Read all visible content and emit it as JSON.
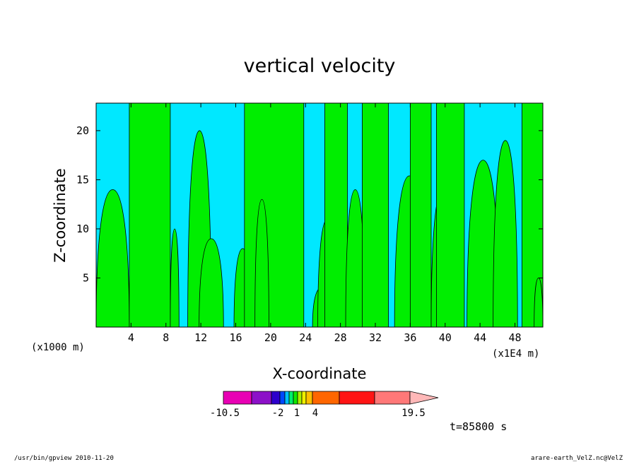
{
  "chart_data": {
    "type": "contour",
    "title": "vertical velocity",
    "xlabel": "X-coordinate",
    "ylabel": "Z-coordinate",
    "x_unit_left": "(x1000 m)",
    "x_unit_right": "(x1E4 m)",
    "x_ticks": [
      "4",
      "8",
      "12",
      "16",
      "20",
      "24",
      "28",
      "32",
      "36",
      "40",
      "44",
      "48"
    ],
    "x_tick_values": [
      4,
      8,
      12,
      16,
      20,
      24,
      28,
      32,
      36,
      40,
      44,
      48
    ],
    "y_ticks": [
      "5",
      "10",
      "15",
      "20"
    ],
    "y_tick_values": [
      5,
      10,
      15,
      20
    ],
    "xlim": [
      0,
      51.2
    ],
    "ylim": [
      0,
      22.8
    ],
    "grid": false,
    "field_colors": {
      "negative": "#00e8ff",
      "positive": "#00ee00"
    },
    "positive_regions": [
      {
        "x": [
          0.0,
          3.8
        ],
        "top": 14.0
      },
      {
        "x": [
          3.8,
          8.5
        ],
        "top": 22.8
      },
      {
        "x": [
          8.5,
          9.5
        ],
        "top": 10.0
      },
      {
        "x": [
          10.5,
          13.2
        ],
        "top": 20.0
      },
      {
        "x": [
          11.8,
          14.6
        ],
        "top": 9.0
      },
      {
        "x": [
          15.8,
          17.8
        ],
        "top": 8.0
      },
      {
        "x": [
          17.0,
          23.8
        ],
        "top": 22.8
      },
      {
        "x": [
          18.2,
          19.8
        ],
        "top": 13.0
      },
      {
        "x": [
          24.8,
          26.8
        ],
        "top": 4.0
      },
      {
        "x": [
          25.4,
          27.6
        ],
        "top": 11.0
      },
      {
        "x": [
          26.2,
          28.8
        ],
        "top": 22.8
      },
      {
        "x": [
          28.6,
          30.8
        ],
        "top": 14.0
      },
      {
        "x": [
          30.5,
          33.5
        ],
        "top": 22.8
      },
      {
        "x": [
          34.2,
          37.6
        ],
        "top": 15.4
      },
      {
        "x": [
          36.0,
          38.4
        ],
        "top": 22.8
      },
      {
        "x": [
          38.4,
          41.0
        ],
        "top": 14.0
      },
      {
        "x": [
          39.0,
          42.2
        ],
        "top": 22.8
      },
      {
        "x": [
          42.5,
          46.2
        ],
        "top": 17.0
      },
      {
        "x": [
          45.5,
          48.3
        ],
        "top": 19.0
      },
      {
        "x": [
          48.8,
          51.2
        ],
        "top": 22.8
      },
      {
        "x": [
          50.2,
          51.2
        ],
        "top": 5.0
      }
    ],
    "colorbar": {
      "labels": [
        "-10.5",
        "-2",
        "1",
        "4",
        "19.5"
      ],
      "label_values": [
        -10.5,
        -2,
        1,
        4,
        19.5
      ],
      "colors": [
        "#e800b4",
        "#8c10c8",
        "#2d00cc",
        "#0048ff",
        "#00c0ff",
        "#00ee6e",
        "#10e800",
        "#a8f000",
        "#f0f000",
        "#ffc000",
        "#ff6600",
        "#ff1414",
        "#ff7878",
        "#ffb8b8"
      ]
    }
  },
  "annotations": {
    "time": "t=85800 s",
    "footer_left": "/usr/bin/gpview   2010-11-20",
    "footer_right": "arare-earth_VelZ.nc@VelZ"
  }
}
